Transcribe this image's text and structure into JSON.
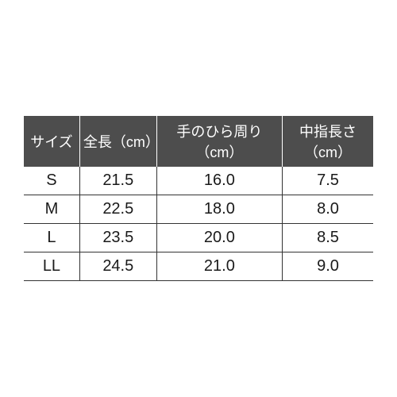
{
  "sizeTable": {
    "type": "table",
    "header_bg": "#4d4d4d",
    "header_fg": "#ffffff",
    "row_border_color": "#333333",
    "columns": [
      {
        "key": "size",
        "label": "サイズ",
        "width_pct": 16
      },
      {
        "key": "total_len",
        "label": "全長（cm）",
        "width_pct": 22
      },
      {
        "key": "palm_circ",
        "label": "手のひら周り（cm）",
        "width_pct": 36
      },
      {
        "key": "mid_finger",
        "label": "中指長さ（cm）",
        "width_pct": 26
      }
    ],
    "rows": [
      {
        "size": "S",
        "total_len": "21.5",
        "palm_circ": "16.0",
        "mid_finger": "7.5"
      },
      {
        "size": "M",
        "total_len": "22.5",
        "palm_circ": "18.0",
        "mid_finger": "8.0"
      },
      {
        "size": "L",
        "total_len": "23.5",
        "palm_circ": "20.0",
        "mid_finger": "8.5"
      },
      {
        "size": "LL",
        "total_len": "24.5",
        "palm_circ": "21.0",
        "mid_finger": "9.0"
      }
    ]
  }
}
